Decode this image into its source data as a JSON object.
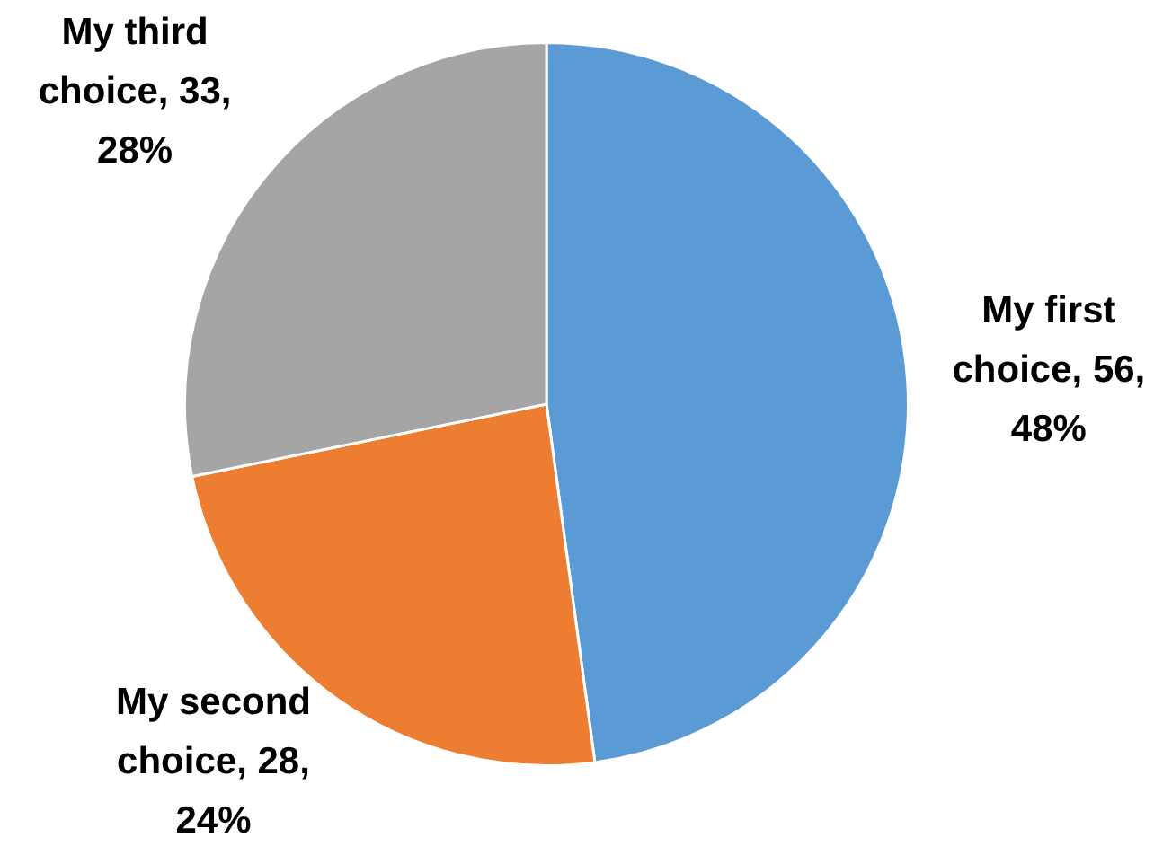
{
  "chart_data": {
    "type": "pie",
    "categories": [
      "My first choice",
      "My second choice",
      "My third choice"
    ],
    "values": [
      56,
      28,
      33
    ],
    "colors": [
      "#5b9bd5",
      "#ed7d31",
      "#a5a5a5"
    ],
    "value_labels": [
      "56, 48%",
      "28, 24%",
      "33, 28%"
    ]
  }
}
